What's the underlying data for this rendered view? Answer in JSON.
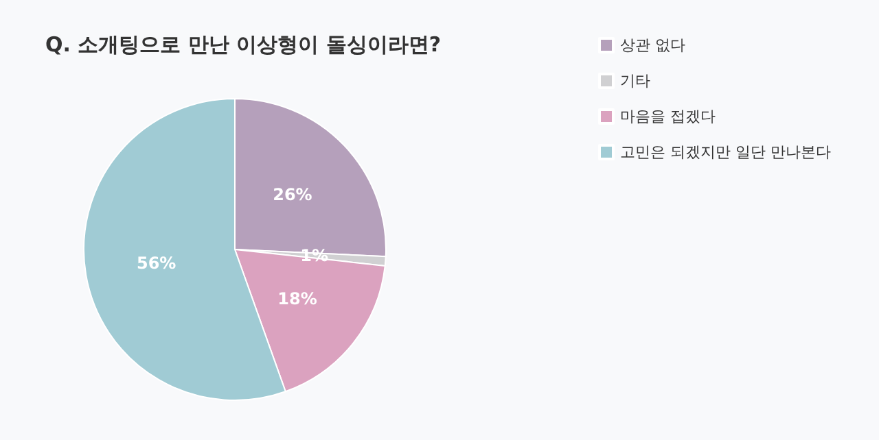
{
  "chart_data": {
    "type": "pie",
    "title": "Q. 소개팅으로 만난 이상형이 돌싱이라면?",
    "categories": [
      "상관 없다",
      "기타",
      "마음을 접겠다",
      "고민은 되겠지만 일단 만나본다"
    ],
    "values": [
      26,
      1,
      18,
      56
    ],
    "value_labels": [
      "26%",
      "1%",
      "18%",
      "56%"
    ],
    "colors": [
      "#b5a0bb",
      "#d0d0d2",
      "#dba2bf",
      "#a0cbd4"
    ],
    "legend": "top right"
  }
}
